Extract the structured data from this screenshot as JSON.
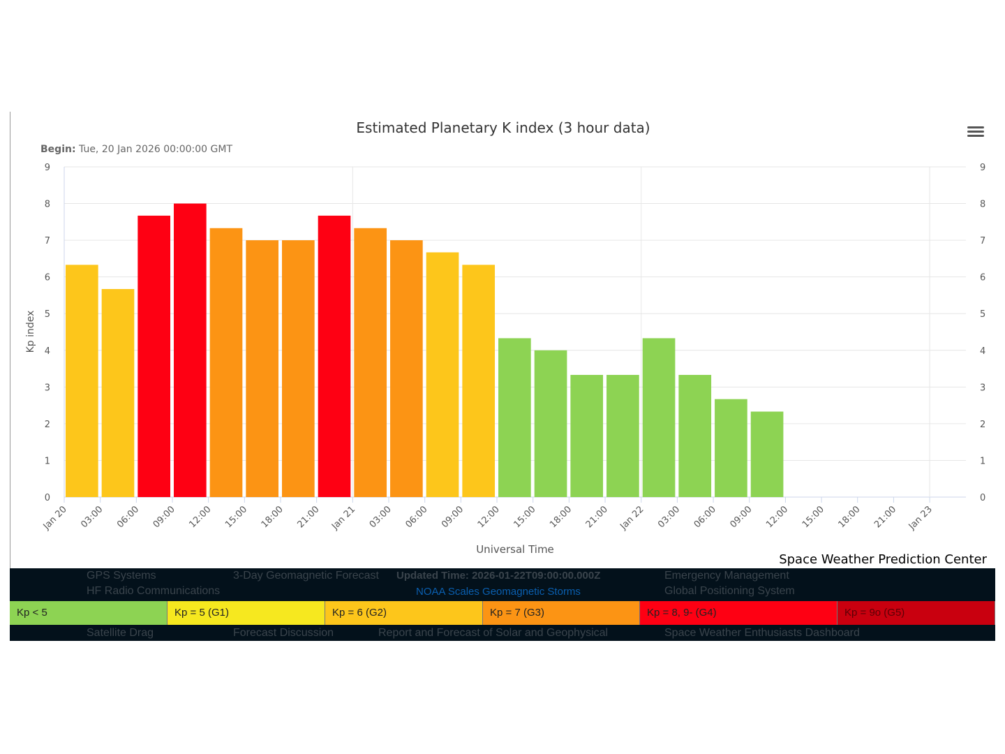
{
  "chart_data": {
    "type": "bar",
    "title": "Estimated Planetary K index (3 hour data)",
    "subtitle_label": "Begin:",
    "subtitle_value": "Tue, 20 Jan 2026 00:00:00 GMT",
    "xlabel": "Universal Time",
    "ylabel": "Kp index",
    "ylim": [
      0,
      9
    ],
    "yticks": [
      "0",
      "1",
      "2",
      "3",
      "4",
      "5",
      "6",
      "7",
      "8",
      "9"
    ],
    "xticks": [
      "Jan 20",
      "03:00",
      "06:00",
      "09:00",
      "12:00",
      "15:00",
      "18:00",
      "21:00",
      "Jan 21",
      "03:00",
      "06:00",
      "09:00",
      "12:00",
      "15:00",
      "18:00",
      "21:00",
      "Jan 22",
      "03:00",
      "06:00",
      "09:00",
      "12:00",
      "15:00",
      "18:00",
      "21:00",
      "Jan 23"
    ],
    "values": [
      6.33,
      5.67,
      7.67,
      8.0,
      7.33,
      7.0,
      7.0,
      7.67,
      7.33,
      7.0,
      6.67,
      6.33,
      4.33,
      4.0,
      3.33,
      3.33,
      4.33,
      3.33,
      2.67,
      2.33
    ],
    "credit": "Space Weather Prediction Center"
  },
  "colors": {
    "green": "#8dd353",
    "yellow": "#fdc61b",
    "orange": "#fc9414",
    "red": "#fe0013",
    "g1": "#f6e81f",
    "g5": "#c9000f"
  },
  "legend": [
    "Kp < 5",
    "Kp = 5 (G1)",
    "Kp = 6 (G2)",
    "Kp = 7 (G3)",
    "Kp = 8, 9- (G4)",
    "Kp = 9o (G5)"
  ],
  "background_page": {
    "updated": "Updated Time: 2026-01-22T09:00:00.000Z",
    "link": "NOAA Scales Geomagnetic Storms",
    "items": [
      "GPS Systems",
      "HF Radio Communications",
      "Satellite Drag",
      "3-Day Geomagnetic Forecast",
      "Forecast Discussion",
      "Report and Forecast of Solar and Geophysical",
      "Emergency Management",
      "Global Positioning System",
      "Space Weather Enthusiasts Dashboard"
    ]
  }
}
